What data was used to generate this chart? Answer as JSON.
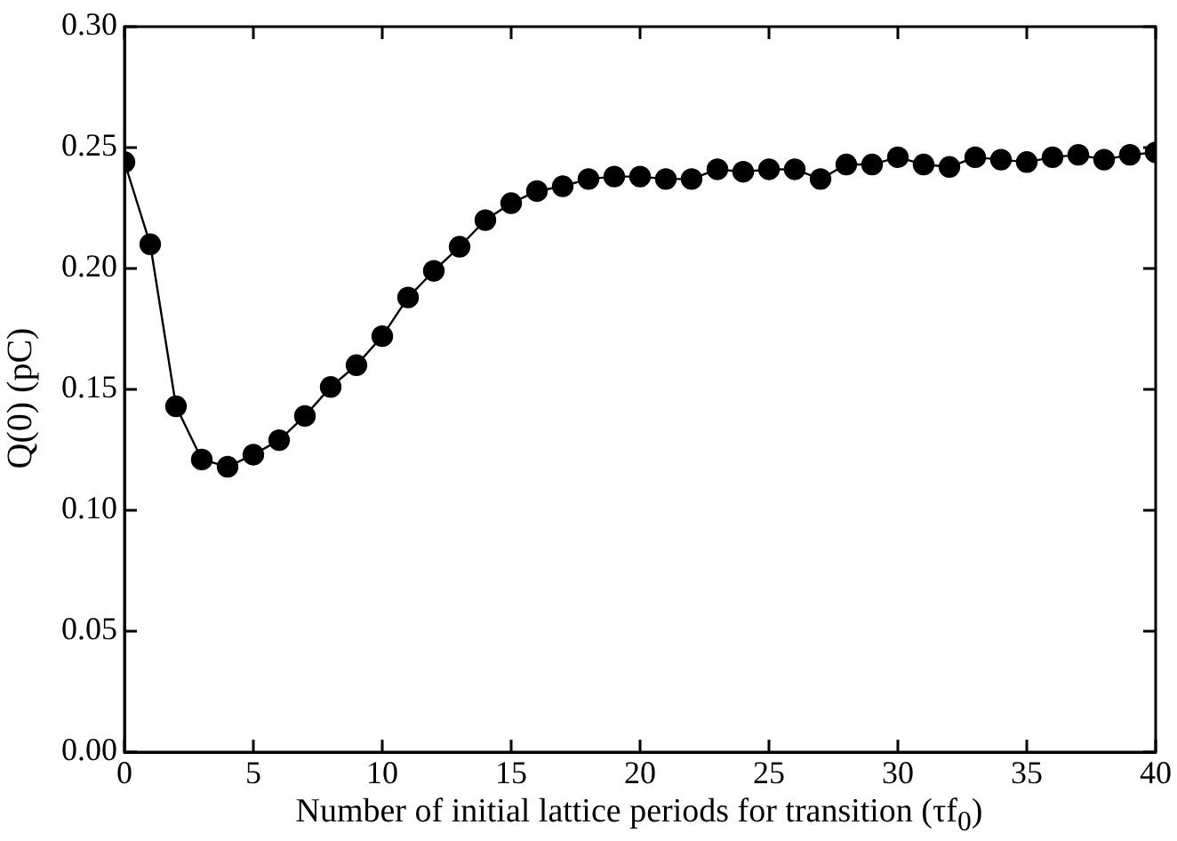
{
  "chart_data": {
    "type": "line",
    "xlabel": "Number of initial lattice periods for transition (τf$_{0}$)",
    "ylabel": "Q(0) (pC)",
    "x": [
      0,
      1,
      2,
      3,
      4,
      5,
      6,
      7,
      8,
      9,
      10,
      11,
      12,
      13,
      14,
      15,
      16,
      17,
      18,
      19,
      20,
      21,
      22,
      23,
      24,
      25,
      26,
      27,
      28,
      29,
      30,
      31,
      32,
      33,
      34,
      35,
      36,
      37,
      38,
      39,
      40
    ],
    "values": [
      0.244,
      0.21,
      0.143,
      0.121,
      0.118,
      0.123,
      0.129,
      0.139,
      0.151,
      0.16,
      0.172,
      0.188,
      0.199,
      0.209,
      0.22,
      0.227,
      0.232,
      0.234,
      0.237,
      0.238,
      0.238,
      0.237,
      0.237,
      0.241,
      0.24,
      0.241,
      0.241,
      0.237,
      0.243,
      0.243,
      0.246,
      0.243,
      0.242,
      0.246,
      0.245,
      0.244,
      0.246,
      0.247,
      0.245,
      0.247,
      0.248
    ],
    "color": "#000000",
    "marker": "circle",
    "line_style": "solid",
    "grid": false,
    "legend": false,
    "xlim": [
      0,
      40
    ],
    "xticks": [
      0,
      5,
      10,
      15,
      20,
      25,
      30,
      35,
      40
    ],
    "ylim": [
      0,
      0.3
    ],
    "yticks": [
      {
        "value": 0,
        "label": "0.00"
      },
      {
        "value": 0.05,
        "label": "0.05"
      },
      {
        "value": 0.1,
        "label": "0.10"
      },
      {
        "value": 0.15,
        "label": "0.15"
      },
      {
        "value": 0.2,
        "label": "0.20"
      },
      {
        "value": 0.25,
        "label": "0.25"
      },
      {
        "value": 0.3,
        "label": "0.30"
      }
    ]
  }
}
